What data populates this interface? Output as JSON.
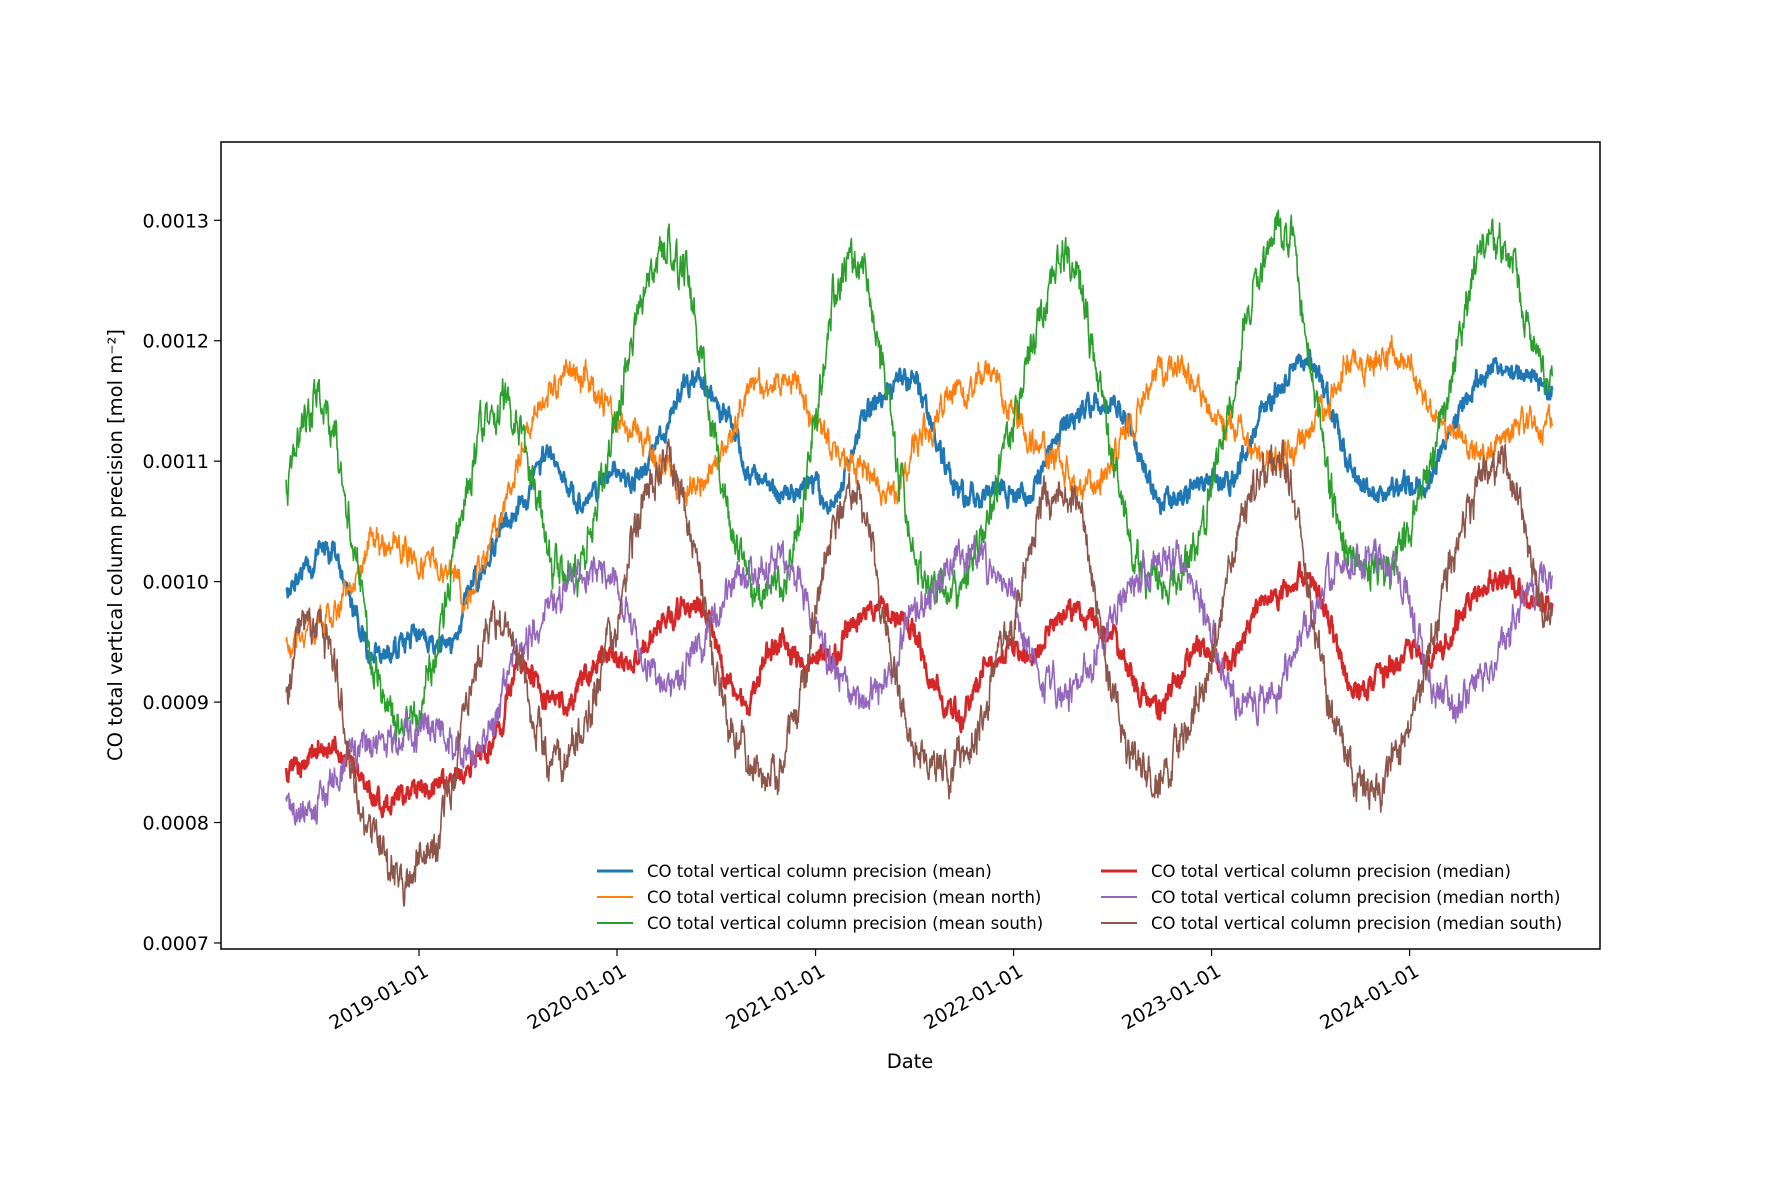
{
  "chart_data": {
    "type": "line",
    "title": "",
    "xlabel": "Date",
    "ylabel": "CO total vertical column precision [mol m⁻²]",
    "x_ticks": [
      "2019-01-01",
      "2020-01-01",
      "2021-01-01",
      "2022-01-01",
      "2023-01-01",
      "2024-01-01"
    ],
    "y_ticks": [
      "0.0007",
      "0.0008",
      "0.0009",
      "0.0010",
      "0.0011",
      "0.0012",
      "0.0013"
    ],
    "xlim": [
      "2018-01-01",
      "2024-12-17"
    ],
    "ylim": [
      0.000695,
      0.001365
    ],
    "grid": false,
    "legend_position": "lower-right",
    "x": [
      "2018-05-01",
      "2018-06-01",
      "2018-07-01",
      "2018-08-01",
      "2018-09-01",
      "2018-10-01",
      "2018-11-01",
      "2018-12-01",
      "2019-01-01",
      "2019-02-01",
      "2019-03-01",
      "2019-04-01",
      "2019-05-01",
      "2019-06-01",
      "2019-07-01",
      "2019-08-01",
      "2019-09-01",
      "2019-10-01",
      "2019-11-01",
      "2019-12-01",
      "2020-01-01",
      "2020-02-01",
      "2020-03-01",
      "2020-04-01",
      "2020-05-01",
      "2020-06-01",
      "2020-07-01",
      "2020-08-01",
      "2020-09-01",
      "2020-10-01",
      "2020-11-01",
      "2020-12-01",
      "2021-01-01",
      "2021-02-01",
      "2021-03-01",
      "2021-04-01",
      "2021-05-01",
      "2021-06-01",
      "2021-07-01",
      "2021-08-01",
      "2021-09-01",
      "2021-10-01",
      "2021-11-01",
      "2021-12-01",
      "2022-01-01",
      "2022-02-01",
      "2022-03-01",
      "2022-04-01",
      "2022-05-01",
      "2022-06-01",
      "2022-07-01",
      "2022-08-01",
      "2022-09-01",
      "2022-10-01",
      "2022-11-01",
      "2022-12-01",
      "2023-01-01",
      "2023-02-01",
      "2023-03-01",
      "2023-04-01",
      "2023-05-01",
      "2023-06-01",
      "2023-07-01",
      "2023-08-01",
      "2023-09-01",
      "2023-10-01",
      "2023-11-01",
      "2023-12-01",
      "2024-01-01",
      "2024-02-01",
      "2024-03-01",
      "2024-04-01",
      "2024-05-01",
      "2024-06-01",
      "2024-07-01",
      "2024-08-01",
      "2024-09-01"
    ],
    "series": [
      {
        "name": "CO total vertical column precision (mean)",
        "color": "#1f77b4",
        "width": 2.6,
        "values": [
          0.00099,
          0.00101,
          0.00103,
          0.00102,
          0.00098,
          0.00094,
          0.00094,
          0.00095,
          0.00096,
          0.00095,
          0.00095,
          0.00099,
          0.00101,
          0.00104,
          0.00106,
          0.00109,
          0.00111,
          0.00108,
          0.00106,
          0.00108,
          0.00109,
          0.00108,
          0.0011,
          0.00113,
          0.00116,
          0.00117,
          0.00115,
          0.00113,
          0.00109,
          0.00108,
          0.00107,
          0.00108,
          0.00108,
          0.00106,
          0.0011,
          0.00114,
          0.00115,
          0.00116,
          0.00117,
          0.00113,
          0.00109,
          0.00107,
          0.00107,
          0.00108,
          0.00107,
          0.00107,
          0.0011,
          0.00113,
          0.00114,
          0.00115,
          0.00115,
          0.00113,
          0.00109,
          0.00106,
          0.00107,
          0.00108,
          0.00108,
          0.00108,
          0.0011,
          0.00114,
          0.00116,
          0.00118,
          0.00119,
          0.00115,
          0.00111,
          0.00108,
          0.00107,
          0.00108,
          0.00108,
          0.00108,
          0.00111,
          0.00114,
          0.00116,
          0.00118,
          0.00118,
          0.00117,
          0.00116
        ]
      },
      {
        "name": "CO total vertical column precision (mean north)",
        "color": "#ff7f0e",
        "width": 1.6,
        "values": [
          0.00095,
          0.00095,
          0.00097,
          0.00098,
          0.001,
          0.00103,
          0.00103,
          0.00103,
          0.00102,
          0.00101,
          0.001,
          0.00099,
          0.00102,
          0.00106,
          0.0011,
          0.00114,
          0.00116,
          0.00118,
          0.00117,
          0.00115,
          0.00113,
          0.00112,
          0.00111,
          0.00109,
          0.00107,
          0.00108,
          0.0011,
          0.00113,
          0.00116,
          0.00117,
          0.00117,
          0.00115,
          0.00113,
          0.00111,
          0.0011,
          0.00109,
          0.00108,
          0.00108,
          0.00111,
          0.00113,
          0.00115,
          0.00116,
          0.00117,
          0.00116,
          0.00114,
          0.00112,
          0.00111,
          0.00109,
          0.00108,
          0.00108,
          0.0011,
          0.00113,
          0.00116,
          0.00118,
          0.00118,
          0.00116,
          0.00114,
          0.00113,
          0.00112,
          0.0011,
          0.0011,
          0.00111,
          0.00113,
          0.00115,
          0.00117,
          0.00118,
          0.00118,
          0.00119,
          0.00118,
          0.00115,
          0.00113,
          0.00112,
          0.00111,
          0.00111,
          0.00112,
          0.00113,
          0.00113
        ]
      },
      {
        "name": "CO total vertical column precision (mean south)",
        "color": "#2ca02c",
        "width": 1.6,
        "values": [
          0.00108,
          0.00114,
          0.00116,
          0.00112,
          0.00103,
          0.00095,
          0.0009,
          0.00088,
          0.0009,
          0.00094,
          0.00101,
          0.00108,
          0.00113,
          0.00116,
          0.00114,
          0.00108,
          0.00103,
          0.001,
          0.00101,
          0.00108,
          0.00114,
          0.0012,
          0.00126,
          0.00129,
          0.00127,
          0.0012,
          0.00111,
          0.00104,
          0.001,
          0.00099,
          0.00099,
          0.00104,
          0.00114,
          0.00124,
          0.00127,
          0.00125,
          0.00119,
          0.0011,
          0.00102,
          0.00099,
          0.00099,
          0.001,
          0.00103,
          0.00108,
          0.00113,
          0.00119,
          0.00124,
          0.00128,
          0.00125,
          0.00118,
          0.0011,
          0.00104,
          0.001,
          0.00099,
          0.001,
          0.00103,
          0.00108,
          0.00114,
          0.00121,
          0.00126,
          0.00129,
          0.00128,
          0.00118,
          0.0011,
          0.00102,
          0.001,
          0.001,
          0.00101,
          0.00104,
          0.00109,
          0.00114,
          0.0012,
          0.00126,
          0.00129,
          0.00127,
          0.00122,
          0.00117
        ]
      },
      {
        "name": "CO total vertical column precision (median)",
        "color": "#d62728",
        "width": 2.6,
        "values": [
          0.00084,
          0.00085,
          0.00086,
          0.00086,
          0.00085,
          0.00082,
          0.00081,
          0.00082,
          0.00083,
          0.00083,
          0.00084,
          0.00085,
          0.00086,
          0.00088,
          0.00094,
          0.00092,
          0.0009,
          0.00089,
          0.00092,
          0.00094,
          0.00094,
          0.00093,
          0.00096,
          0.00097,
          0.00098,
          0.00098,
          0.00095,
          0.00091,
          0.00089,
          0.00094,
          0.00095,
          0.00093,
          0.00094,
          0.00093,
          0.00096,
          0.00098,
          0.00098,
          0.00097,
          0.00096,
          0.00092,
          0.0009,
          0.00089,
          0.00092,
          0.00094,
          0.00094,
          0.00093,
          0.00096,
          0.00097,
          0.00098,
          0.00097,
          0.00096,
          0.00093,
          0.0009,
          0.00089,
          0.00092,
          0.00094,
          0.00094,
          0.00093,
          0.00095,
          0.00098,
          0.00099,
          0.001,
          0.00101,
          0.00097,
          0.00093,
          0.00091,
          0.00092,
          0.00093,
          0.00094,
          0.00093,
          0.00094,
          0.00097,
          0.00099,
          0.001,
          0.001,
          0.00099,
          0.00098
        ]
      },
      {
        "name": "CO total vertical column precision (median north)",
        "color": "#9467bd",
        "width": 1.6,
        "values": [
          0.00081,
          0.00081,
          0.00082,
          0.00083,
          0.00085,
          0.00087,
          0.00087,
          0.00088,
          0.00088,
          0.00088,
          0.00087,
          0.00086,
          0.00087,
          0.0009,
          0.00094,
          0.00096,
          0.00098,
          0.001,
          0.00101,
          0.00101,
          0.001,
          0.00096,
          0.00093,
          0.00092,
          0.00092,
          0.00094,
          0.00097,
          0.001,
          0.00101,
          0.00102,
          0.00102,
          0.001,
          0.00096,
          0.00092,
          0.0009,
          0.0009,
          0.00091,
          0.00094,
          0.00097,
          0.001,
          0.00101,
          0.00102,
          0.00102,
          0.00101,
          0.00098,
          0.00094,
          0.00091,
          0.00091,
          0.00092,
          0.00094,
          0.00097,
          0.001,
          0.00101,
          0.00102,
          0.00102,
          0.001,
          0.00096,
          0.00092,
          0.0009,
          0.0009,
          0.00091,
          0.00094,
          0.00097,
          0.001,
          0.00101,
          0.00102,
          0.00102,
          0.00101,
          0.00098,
          0.00093,
          0.0009,
          0.0009,
          0.00091,
          0.00093,
          0.00096,
          0.00099,
          0.001
        ]
      },
      {
        "name": "CO total vertical column precision (median south)",
        "color": "#8c564b",
        "width": 1.6,
        "values": [
          0.0009,
          0.00096,
          0.00097,
          0.00092,
          0.00084,
          0.00079,
          0.00076,
          0.00075,
          0.00077,
          0.00078,
          0.00083,
          0.00091,
          0.00096,
          0.00098,
          0.00094,
          0.00088,
          0.00085,
          0.00085,
          0.00087,
          0.00093,
          0.00097,
          0.00103,
          0.00108,
          0.0011,
          0.00108,
          0.001,
          0.00093,
          0.00087,
          0.00085,
          0.00084,
          0.00085,
          0.0009,
          0.00097,
          0.00105,
          0.00108,
          0.00106,
          0.00099,
          0.00091,
          0.00086,
          0.00084,
          0.00084,
          0.00085,
          0.00087,
          0.00093,
          0.00097,
          0.00103,
          0.00107,
          0.00109,
          0.00106,
          0.00098,
          0.00091,
          0.00086,
          0.00084,
          0.00084,
          0.00086,
          0.00089,
          0.00094,
          0.001,
          0.00106,
          0.00109,
          0.0011,
          0.00108,
          0.00099,
          0.00091,
          0.00086,
          0.00083,
          0.00083,
          0.00085,
          0.00088,
          0.00093,
          0.00098,
          0.00103,
          0.00108,
          0.0011,
          0.00109,
          0.00104,
          0.00098
        ]
      }
    ]
  }
}
